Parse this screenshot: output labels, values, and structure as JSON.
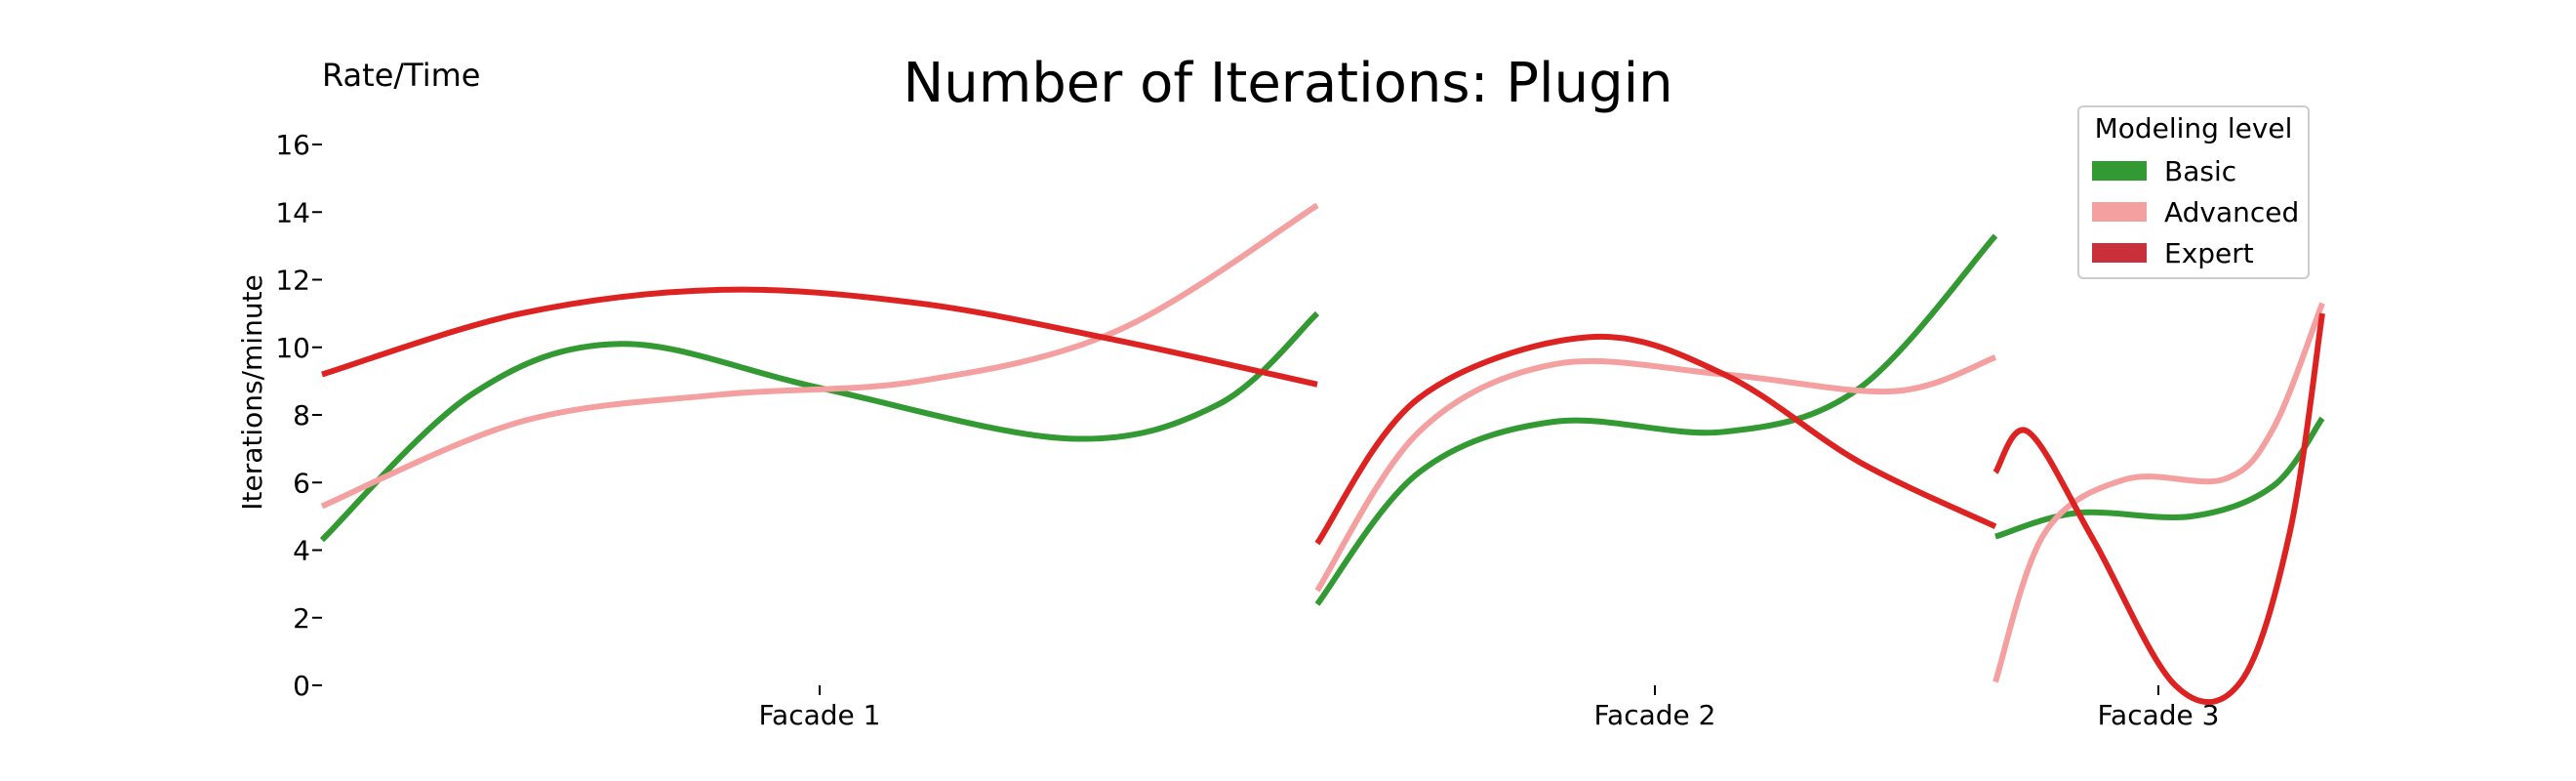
{
  "chart_data": {
    "type": "line",
    "title": "Number of Iterations: Plugin",
    "corner_label": "Rate/Time",
    "xlabel": "",
    "ylabel": "Iterations/minute",
    "ylim": [
      0,
      16
    ],
    "yticks": [
      0,
      2,
      4,
      6,
      8,
      10,
      12,
      14,
      16
    ],
    "grid": false,
    "categories": [
      "Facade 1",
      "Facade 2",
      "Facade 3"
    ],
    "legend": {
      "title": "Modeling level",
      "placement": "top-right",
      "entries": [
        "Basic",
        "Advanced",
        "Expert"
      ]
    },
    "colors": {
      "Basic": "#339933",
      "Advanced": "#f4a0a0",
      "Expert": "#dd2222",
      "Expert_legend": "#c8303a"
    },
    "segments": [
      {
        "category": "Facade 1",
        "x_range": [
          0,
          1
        ],
        "series": [
          {
            "name": "Basic",
            "points": [
              [
                0,
                4.3
              ],
              [
                0.15,
                8.6
              ],
              [
                0.3,
                10.1
              ],
              [
                0.5,
                8.8
              ],
              [
                0.75,
                7.3
              ],
              [
                0.9,
                8.3
              ],
              [
                1,
                11.0
              ]
            ]
          },
          {
            "name": "Advanced",
            "points": [
              [
                0,
                5.3
              ],
              [
                0.2,
                7.8
              ],
              [
                0.4,
                8.6
              ],
              [
                0.6,
                9.0
              ],
              [
                0.8,
                10.5
              ],
              [
                1,
                14.2
              ]
            ]
          },
          {
            "name": "Expert",
            "points": [
              [
                0,
                9.2
              ],
              [
                0.2,
                11.0
              ],
              [
                0.4,
                11.7
              ],
              [
                0.6,
                11.3
              ],
              [
                0.8,
                10.2
              ],
              [
                1,
                8.9
              ]
            ]
          }
        ]
      },
      {
        "category": "Facade 2",
        "x_range": [
          0,
          1
        ],
        "series": [
          {
            "name": "Basic",
            "points": [
              [
                0,
                2.4
              ],
              [
                0.15,
                6.3
              ],
              [
                0.35,
                7.8
              ],
              [
                0.6,
                7.5
              ],
              [
                0.8,
                8.8
              ],
              [
                1,
                13.3
              ]
            ]
          },
          {
            "name": "Advanced",
            "points": [
              [
                0,
                2.8
              ],
              [
                0.15,
                7.5
              ],
              [
                0.35,
                9.5
              ],
              [
                0.6,
                9.2
              ],
              [
                0.85,
                8.7
              ],
              [
                1,
                9.7
              ]
            ]
          },
          {
            "name": "Expert",
            "points": [
              [
                0,
                4.2
              ],
              [
                0.15,
                8.5
              ],
              [
                0.4,
                10.3
              ],
              [
                0.6,
                9.2
              ],
              [
                0.8,
                6.6
              ],
              [
                1,
                4.7
              ]
            ]
          }
        ]
      },
      {
        "category": "Facade 3",
        "x_range": [
          0,
          1
        ],
        "series": [
          {
            "name": "Basic",
            "points": [
              [
                0,
                4.4
              ],
              [
                0.25,
                5.1
              ],
              [
                0.6,
                5.0
              ],
              [
                0.85,
                5.9
              ],
              [
                1,
                7.9
              ]
            ]
          },
          {
            "name": "Advanced",
            "points": [
              [
                0,
                0.1
              ],
              [
                0.15,
                4.5
              ],
              [
                0.4,
                6.1
              ],
              [
                0.7,
                6.1
              ],
              [
                0.85,
                7.6
              ],
              [
                1,
                11.3
              ]
            ]
          },
          {
            "name": "Expert",
            "points": [
              [
                0,
                6.3
              ],
              [
                0.1,
                7.5
              ],
              [
                0.3,
                4.3
              ],
              [
                0.55,
                0.0
              ],
              [
                0.75,
                0.1
              ],
              [
                0.9,
                4.5
              ],
              [
                1,
                11.0
              ]
            ]
          }
        ]
      }
    ]
  }
}
